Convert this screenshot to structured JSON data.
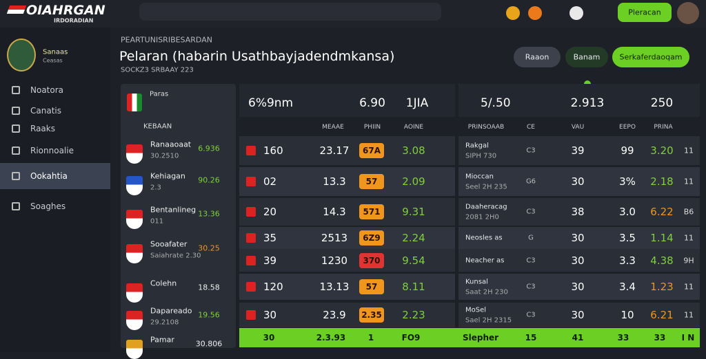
{
  "topbar": {
    "logo": "OIAHRGAN",
    "logo_sub": "IRDORADIAN",
    "button": "Pleracan"
  },
  "sidebar": {
    "club": "Sanaas",
    "club_sub": "Ceasas",
    "menu": [
      "Noatora",
      "Canatis",
      "Raaks",
      "Rionnoalie",
      "Ookahtia",
      "Soaghes"
    ],
    "active": 4
  },
  "header": {
    "kicker": "PEARTUNISRIBESARDAN",
    "title": "Pelaran (habarin Usathbayjadendmkansa)",
    "subtitle": "SOCKZ3 SRBAAY 223",
    "buttons": [
      {
        "label": "Raaon",
        "color": "#3c414b"
      },
      {
        "label": "Banam",
        "color": "#223a26"
      },
      {
        "label": "Serkaferdaoqam",
        "color": "#6ccf24"
      }
    ]
  },
  "teams": {
    "header": "Paras",
    "label": "KEBAAN",
    "items": [
      {
        "name": "Ranaaoaat",
        "sub": "30.2510",
        "value": "6.936"
      },
      {
        "name": "Kehiagan",
        "sub": "2.3",
        "value": "90.26"
      },
      {
        "name": "Bentanlineg",
        "sub": "011",
        "value": "13.36"
      },
      {
        "name": "Sooafater",
        "sub": "Saiahrate 2.30",
        "value": "30.25"
      },
      {
        "name": "Colehn",
        "value": "18.58"
      },
      {
        "name": "Dapareado",
        "sub": "29.2108",
        "value": "19.56"
      },
      {
        "name": "Pamar",
        "value": "30.806"
      }
    ]
  },
  "table": {
    "summary": [
      "6%9nm",
      "6.90",
      "1JIA",
      "5/.50",
      "2.913",
      "250"
    ],
    "columns": [
      "MEAAE",
      "PHIIN",
      "AOINE",
      "PRINSOAAB",
      "CE",
      "VAU",
      "EEPO",
      "PRINA"
    ],
    "rows": [
      {
        "num": "160",
        "time": "23.17",
        "pill": "67A",
        "pill_color": "#f0961c",
        "odds": "3.08",
        "match": "Rakgal",
        "match_sub": "SIPH 730",
        "ce": "C3",
        "vau": "39",
        "eepo": "99",
        "prina": "3.20",
        "prina_color": "#7fd13b",
        "last": "11"
      },
      {
        "num": "02",
        "time": "13.3",
        "pill": "57",
        "pill_color": "#f0961c",
        "odds": "2.09",
        "match": "Mioccan",
        "match_sub": "Seel 2H 235",
        "ce": "G6",
        "vau": "30",
        "eepo": "3%",
        "prina": "2.18",
        "prina_color": "#7fd13b",
        "last": "11"
      },
      {
        "num": "20",
        "time": "14.3",
        "pill": "571",
        "pill_color": "#f0961c",
        "odds": "9.31",
        "match": "Daaheracag",
        "match_sub": "2081 2H0",
        "ce": "C3",
        "vau": "38",
        "eepo": "3.0",
        "prina": "6.22",
        "prina_color": "#f0961c",
        "last": "B6"
      },
      {
        "num": "35",
        "time": "2513",
        "pill": "6Z9",
        "pill_color": "#f0961c",
        "odds": "2.24",
        "match": "Neosles as",
        "ce": "G",
        "vau": "30",
        "eepo": "3.5",
        "prina": "1.14",
        "prina_color": "#7fd13b",
        "last": "11"
      },
      {
        "num": "39",
        "time": "1230",
        "pill": "370",
        "pill_color": "#e03434",
        "odds": "9.54",
        "match": "Neacher as",
        "ce": "C3",
        "vau": "30",
        "eepo": "3.3",
        "prina": "4.38",
        "prina_color": "#7fd13b",
        "last": "9H"
      },
      {
        "num": "120",
        "time": "13.13",
        "pill": "57",
        "pill_color": "#f0961c",
        "odds": "8.11",
        "match": "Kunsal",
        "match_sub": "Saat 2H 230",
        "ce": "C3",
        "vau": "30",
        "eepo": "3.4",
        "prina": "1.23",
        "prina_color": "#f0961c",
        "last": "11"
      },
      {
        "num": "30",
        "time": "23.9",
        "pill": "2.35",
        "pill_color": "#f0961c",
        "odds": "2.23",
        "match": "MoSel",
        "match_sub": "Sael 2H 2315",
        "ce": "C3",
        "vau": "30",
        "eepo": "10",
        "prina": "6.21",
        "prina_color": "#f0961c",
        "last": "11"
      }
    ],
    "footer": [
      "30",
      "2.3.93",
      "1",
      "FO9",
      "Slepher",
      "15",
      "41",
      "33",
      "33",
      "I N"
    ]
  }
}
